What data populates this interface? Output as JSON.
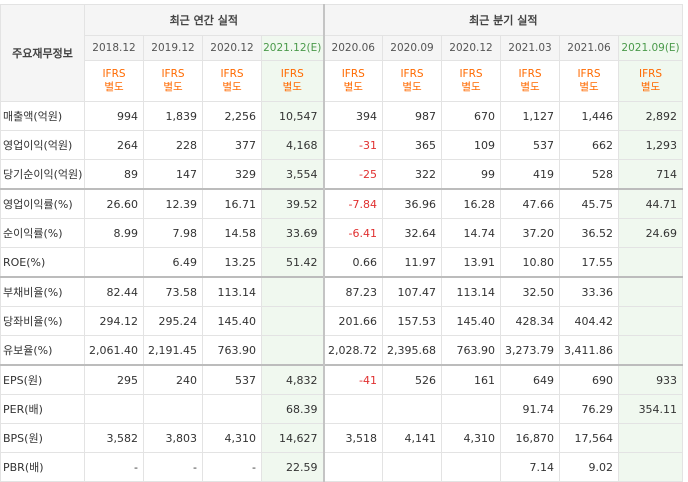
{
  "corner_glyph": "^",
  "header": {
    "row_label": "주요재무정보",
    "annual_title": "최근 연간 실적",
    "quarter_title": "최근 분기 실적",
    "annual_periods": [
      "2018.12",
      "2019.12",
      "2020.12",
      "2021.12(E)"
    ],
    "quarter_periods": [
      "2020.06",
      "2020.09",
      "2020.12",
      "2021.03",
      "2021.06",
      "2021.09(E)"
    ],
    "ifrs_line1": "IFRS",
    "ifrs_line2": "별도"
  },
  "colors": {
    "negative": "#e03030",
    "ifrs": "#ff6a00",
    "estimate_bg": "#f0f8ef"
  },
  "rows": [
    {
      "label": "매출액(억원)",
      "annual": [
        "994",
        "1,839",
        "2,256",
        "10,547"
      ],
      "quarter": [
        "394",
        "987",
        "670",
        "1,127",
        "1,446",
        "2,892"
      ]
    },
    {
      "label": "영업이익(억원)",
      "annual": [
        "264",
        "228",
        "377",
        "4,168"
      ],
      "quarter": [
        "-31",
        "365",
        "109",
        "537",
        "662",
        "1,293"
      ]
    },
    {
      "label": "당기순이익(억원)",
      "annual": [
        "89",
        "147",
        "329",
        "3,554"
      ],
      "quarter": [
        "-25",
        "322",
        "99",
        "419",
        "528",
        "714"
      ]
    },
    {
      "label": "영업이익률(%)",
      "annual": [
        "26.60",
        "12.39",
        "16.71",
        "39.52"
      ],
      "quarter": [
        "-7.84",
        "36.96",
        "16.28",
        "47.66",
        "45.75",
        "44.71"
      ]
    },
    {
      "label": "순이익률(%)",
      "annual": [
        "8.99",
        "7.98",
        "14.58",
        "33.69"
      ],
      "quarter": [
        "-6.41",
        "32.64",
        "14.74",
        "37.20",
        "36.52",
        "24.69"
      ]
    },
    {
      "label": "ROE(%)",
      "annual": [
        "",
        "6.49",
        "13.25",
        "51.42"
      ],
      "quarter": [
        "0.66",
        "11.97",
        "13.91",
        "10.80",
        "17.55",
        ""
      ]
    },
    {
      "label": "부채비율(%)",
      "annual": [
        "82.44",
        "73.58",
        "113.14",
        ""
      ],
      "quarter": [
        "87.23",
        "107.47",
        "113.14",
        "32.50",
        "33.36",
        ""
      ]
    },
    {
      "label": "당좌비율(%)",
      "annual": [
        "294.12",
        "295.24",
        "145.40",
        ""
      ],
      "quarter": [
        "201.66",
        "157.53",
        "145.40",
        "428.34",
        "404.42",
        ""
      ]
    },
    {
      "label": "유보율(%)",
      "annual": [
        "2,061.40",
        "2,191.45",
        "763.90",
        ""
      ],
      "quarter": [
        "2,028.72",
        "2,395.68",
        "763.90",
        "3,273.79",
        "3,411.86",
        ""
      ]
    },
    {
      "label": "EPS(원)",
      "annual": [
        "295",
        "240",
        "537",
        "4,832"
      ],
      "quarter": [
        "-41",
        "526",
        "161",
        "649",
        "690",
        "933"
      ]
    },
    {
      "label": "PER(배)",
      "annual": [
        "",
        "",
        "",
        "68.39"
      ],
      "quarter": [
        "",
        "",
        "",
        "91.74",
        "76.29",
        "354.11"
      ]
    },
    {
      "label": "BPS(원)",
      "annual": [
        "3,582",
        "3,803",
        "4,310",
        "14,627"
      ],
      "quarter": [
        "3,518",
        "4,141",
        "4,310",
        "16,870",
        "17,564",
        ""
      ]
    },
    {
      "label": "PBR(배)",
      "annual": [
        "-",
        "-",
        "-",
        "22.59"
      ],
      "quarter": [
        "",
        "",
        "",
        "7.14",
        "9.02",
        ""
      ]
    }
  ]
}
